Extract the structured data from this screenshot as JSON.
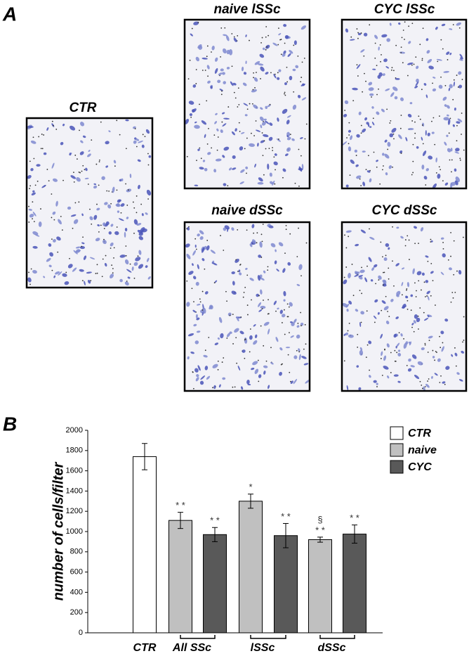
{
  "panel_a": {
    "label": "A",
    "images": [
      {
        "title": "CTR"
      },
      {
        "title": "naive lSSc"
      },
      {
        "title": "CYC lSSc"
      },
      {
        "title": "naive dSSc"
      },
      {
        "title": "CYC dSSc"
      }
    ]
  },
  "panel_b": {
    "label": "B"
  },
  "chart_data": {
    "type": "bar",
    "y_label": "number of cells/filter",
    "categories": [
      "CTR",
      "All SSc",
      "lSSc",
      "dSSc"
    ],
    "series": [
      {
        "name": "CTR",
        "color": "#ffffff",
        "values": [
          1740,
          null,
          null,
          null
        ],
        "errors": [
          130,
          null,
          null,
          null
        ],
        "significance": [
          null,
          null,
          null,
          null
        ],
        "second_marks": [
          null,
          null,
          null,
          null
        ]
      },
      {
        "name": "naive",
        "color": "#c0c0c0",
        "values": [
          null,
          1110,
          1300,
          920
        ],
        "errors": [
          null,
          80,
          70,
          25
        ],
        "significance": [
          null,
          "* *",
          "*",
          "* *"
        ],
        "second_marks": [
          null,
          null,
          null,
          "§"
        ]
      },
      {
        "name": "CYC",
        "color": "#595959",
        "values": [
          null,
          970,
          960,
          975
        ],
        "errors": [
          null,
          70,
          120,
          90
        ],
        "significance": [
          null,
          "* *",
          "* *",
          "* *"
        ],
        "second_marks": [
          null,
          null,
          null,
          null
        ]
      }
    ],
    "ylim": [
      0,
      2000
    ],
    "yticks": [
      0,
      200,
      400,
      600,
      800,
      1000,
      1200,
      1400,
      1600,
      1800,
      2000
    ],
    "legend": "top-right"
  }
}
